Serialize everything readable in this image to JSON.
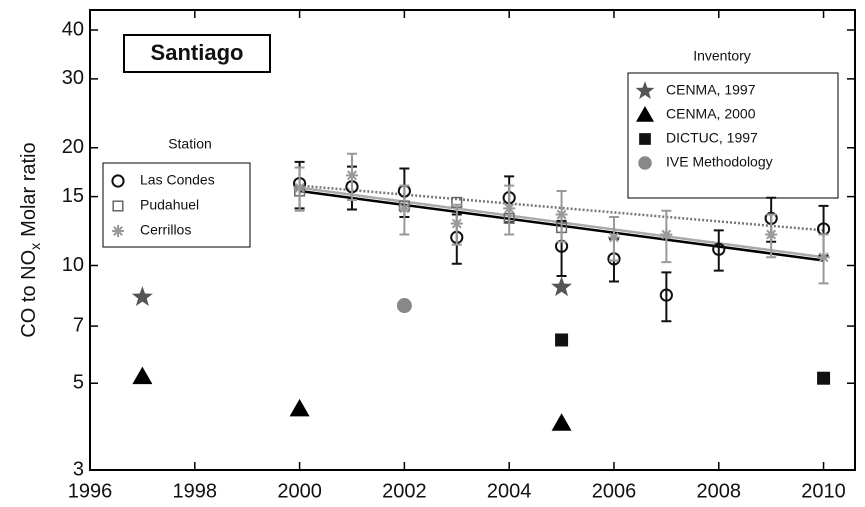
{
  "chart_data": {
    "type": "scatter",
    "title": "Santiago",
    "y_label": {
      "main": "CO to NO",
      "sub": "x",
      "rest": "Molar ratio"
    },
    "xlim": [
      1996,
      2010.6
    ],
    "xticks": [
      1996,
      1998,
      2000,
      2002,
      2004,
      2006,
      2008,
      2010
    ],
    "ylim": [
      3,
      45
    ],
    "yticks": [
      3,
      5,
      7,
      10,
      15,
      20,
      30,
      40
    ],
    "y_log": true,
    "station_legend_title": "Station",
    "inventory_legend_title": "Inventory",
    "station_series": [
      {
        "name": "Las Condes",
        "color": "#111111",
        "marker": "open-circle",
        "x": [
          2000,
          2001,
          2002,
          2003,
          2004,
          2005,
          2006,
          2007,
          2008,
          2009,
          2010
        ],
        "values": [
          16.2,
          15.9,
          15.5,
          11.8,
          14.9,
          11.2,
          10.4,
          8.4,
          11.0,
          13.2,
          12.4
        ],
        "errors": [
          2.2,
          2.0,
          2.2,
          1.7,
          2.0,
          1.8,
          1.3,
          1.2,
          1.3,
          1.7,
          1.8
        ]
      },
      {
        "name": "Pudahuel",
        "color": "#666666",
        "marker": "open-square",
        "x": [
          2000,
          2002,
          2003,
          2004,
          2005
        ],
        "values": [
          15.5,
          14.2,
          14.5,
          13.2,
          12.5
        ]
      },
      {
        "name": "Cerrillos",
        "color": "#999999",
        "marker": "asterisk",
        "x": [
          2000,
          2001,
          2002,
          2003,
          2004,
          2005,
          2006,
          2007,
          2009,
          2010
        ],
        "values": [
          15.8,
          17.0,
          14.0,
          12.8,
          14.0,
          13.5,
          11.8,
          12.0,
          12.0,
          10.5
        ],
        "errors": [
          2.0,
          2.3,
          2.0,
          1.5,
          2.0,
          2.0,
          1.5,
          1.8,
          1.5,
          1.5
        ]
      }
    ],
    "inventory_series": [
      {
        "name": "CENMA, 1997",
        "color": "#555555",
        "marker": "star",
        "x": [
          1997,
          2005
        ],
        "values": [
          8.3,
          8.8
        ]
      },
      {
        "name": "CENMA, 2000",
        "color": "#000000",
        "marker": "triangle",
        "x": [
          1997,
          2000,
          2005
        ],
        "values": [
          5.2,
          4.3,
          3.95
        ]
      },
      {
        "name": "DICTUC, 1997",
        "color": "#111111",
        "marker": "filled-square",
        "x": [
          2005,
          2010
        ],
        "values": [
          6.45,
          5.15
        ]
      },
      {
        "name": "IVE Methodology",
        "color": "#888888",
        "marker": "filled-circle",
        "x": [
          2002
        ],
        "values": [
          7.9
        ]
      }
    ],
    "trend_lines": [
      {
        "color": "#000000",
        "dash": "none",
        "x": [
          2000,
          2010
        ],
        "values": [
          15.5,
          10.3
        ]
      },
      {
        "color": "#777777",
        "dash": "2 2",
        "x": [
          2000,
          2010
        ],
        "values": [
          16.0,
          12.3
        ]
      },
      {
        "color": "#aaaaaa",
        "dash": "none",
        "x": [
          2000,
          2010
        ],
        "values": [
          15.8,
          10.5
        ]
      }
    ]
  }
}
